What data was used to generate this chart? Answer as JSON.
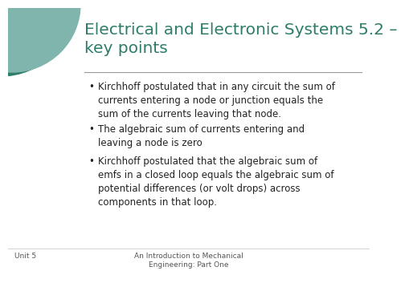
{
  "title": "Electrical and Electronic Systems 5.2 –\nkey points",
  "title_color": "#2E7D6B",
  "slide_bg": "#FFFFFF",
  "bullet_points": [
    "Kirchhoff postulated that in any circuit the sum of\ncurrents entering a node or junction equals the\nsum of the currents leaving that node.",
    "The algebraic sum of currents entering and\nleaving a node is zero",
    "Kirchhoff postulated that the algebraic sum of\nemfs in a closed loop equals the algebraic sum of\npotential differences (or volt drops) across\ncomponents in that loop."
  ],
  "bullet_color": "#222222",
  "bullet_fontsize": 8.5,
  "title_fontsize": 14.5,
  "footer_left": "Unit 5",
  "footer_center": "An Introduction to Mechanical\nEngineering: Part One",
  "footer_fontsize": 6.5,
  "circle_color_outer": "#2E7D6B",
  "circle_color_inner": "#7FB5AD"
}
